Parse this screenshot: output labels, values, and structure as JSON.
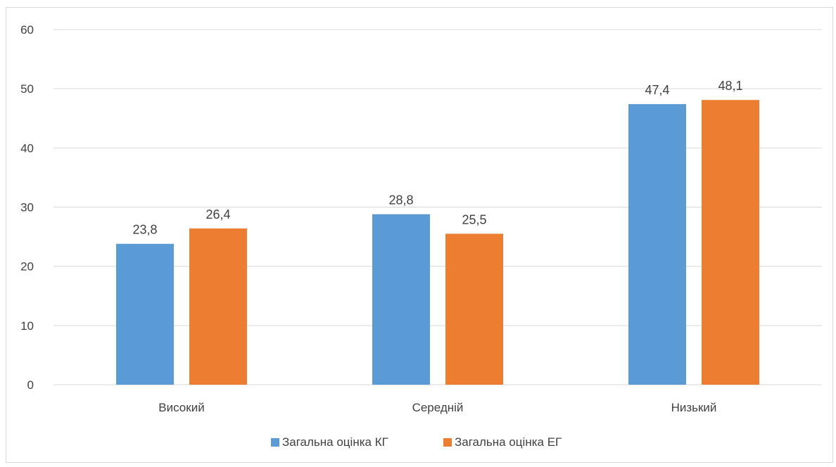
{
  "chart_data": {
    "type": "bar",
    "categories": [
      "Високий",
      "Середній",
      "Низький"
    ],
    "series": [
      {
        "name": "Загальна оцінка КГ",
        "values": [
          23.8,
          28.8,
          47.4
        ],
        "labels": [
          "23,8",
          "28,8",
          "47,4"
        ],
        "color": "#5b9bd5"
      },
      {
        "name": "Загальна оцінка ЕГ",
        "values": [
          26.4,
          25.5,
          48.1
        ],
        "labels": [
          "26,4",
          "25,5",
          "48,1"
        ],
        "color": "#ed7d31"
      }
    ],
    "ylim": [
      0,
      60
    ],
    "yticks": [
      0,
      10,
      20,
      30,
      40,
      50,
      60
    ],
    "grid": true,
    "legend": "bottom",
    "title": "",
    "xlabel": "",
    "ylabel": ""
  }
}
